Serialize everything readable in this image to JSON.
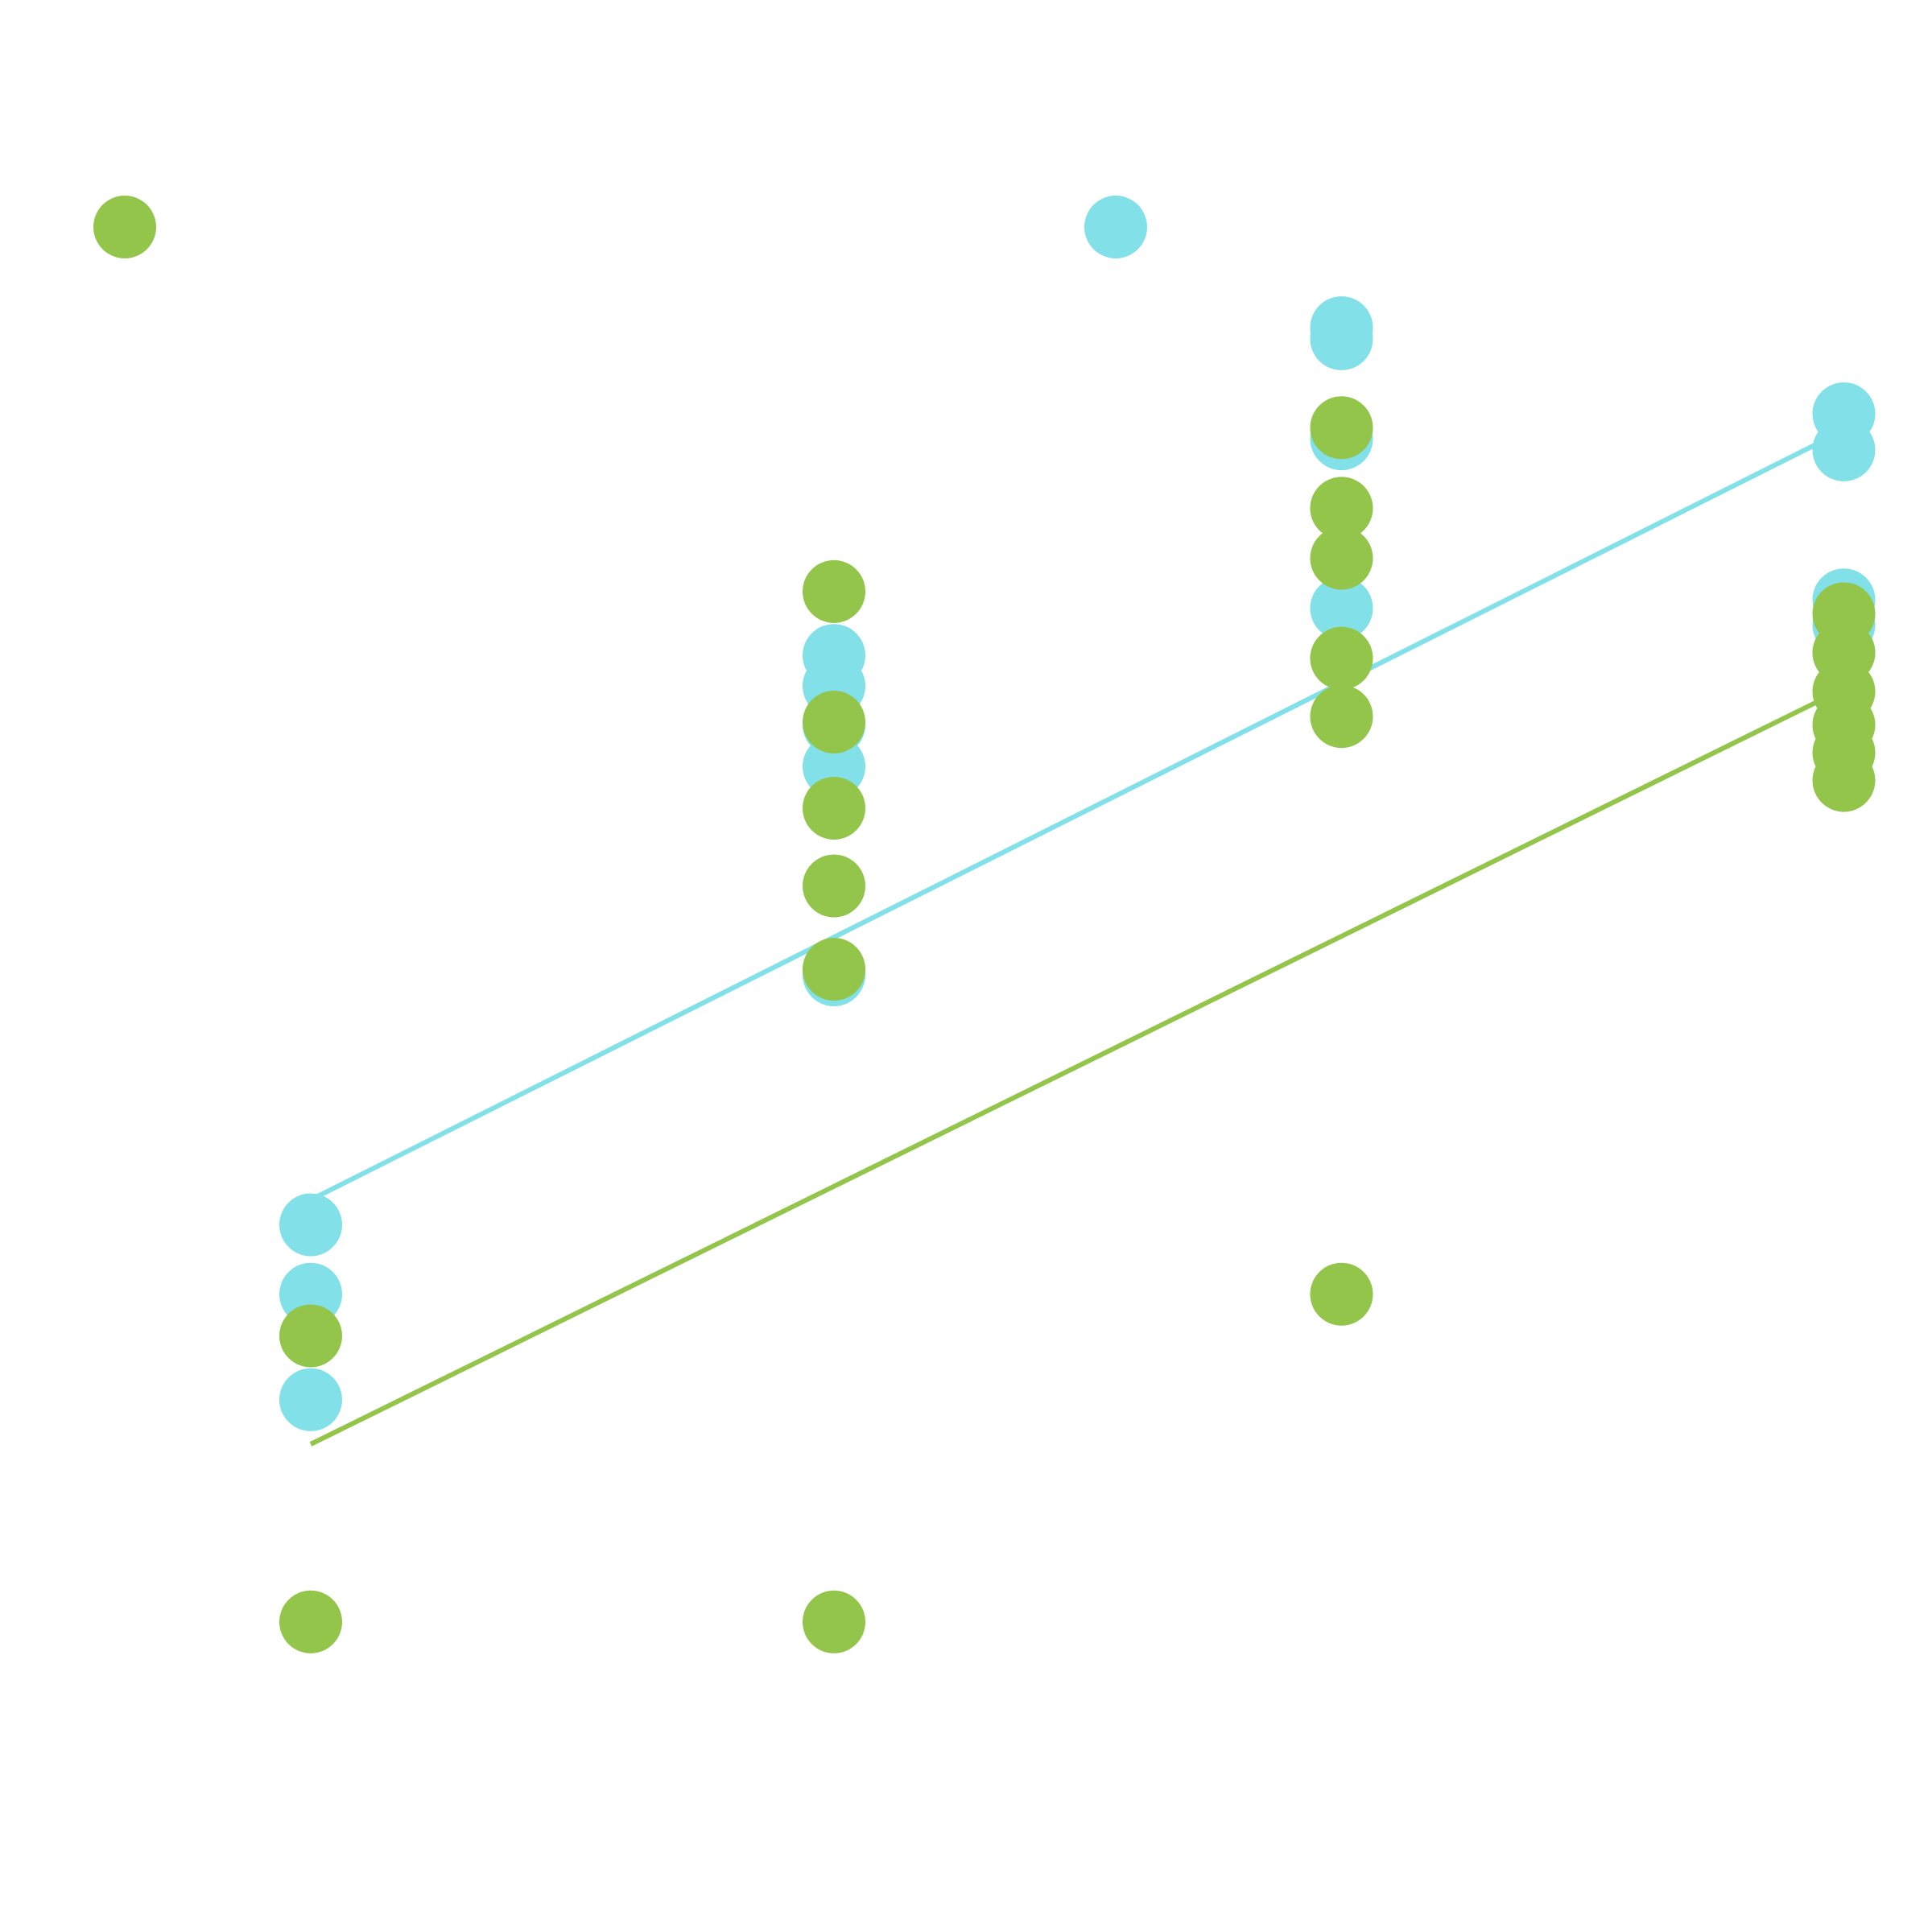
{
  "chart_data": {
    "type": "scatter",
    "title": "",
    "xlabel": "",
    "ylabel": "",
    "grid": false,
    "legend_location": "top",
    "xlim": [
      -0.4,
      3.0
    ],
    "ylim": [
      -3.4,
      0.05
    ],
    "series": [
      {
        "color": "#81E0E8",
        "legend_marker_position": "top-center",
        "points": [
          {
            "x": 0,
            "y": -2.205
          },
          {
            "x": 0,
            "y": -2.33
          },
          {
            "x": 0,
            "y": -2.52
          },
          {
            "x": 1,
            "y": -1.18
          },
          {
            "x": 1,
            "y": -1.235
          },
          {
            "x": 1,
            "y": -1.305
          },
          {
            "x": 1,
            "y": -1.38
          },
          {
            "x": 1,
            "y": -1.755
          },
          {
            "x": 1.97,
            "y": -0.59
          },
          {
            "x": 1.97,
            "y": -0.61
          },
          {
            "x": 1.97,
            "y": -0.79
          },
          {
            "x": 1.97,
            "y": -1.095
          },
          {
            "x": 2.93,
            "y": -0.745
          },
          {
            "x": 2.93,
            "y": -0.81
          },
          {
            "x": 2.93,
            "y": -1.08
          },
          {
            "x": 2.93,
            "y": -1.125
          },
          {
            "x": 2.93,
            "y": -1.175
          }
        ],
        "trend": {
          "x": [
            0,
            2.93
          ],
          "y": [
            -2.16,
            -0.775
          ]
        }
      },
      {
        "color": "#92C54A",
        "legend_marker_position": "top-left",
        "points": [
          {
            "x": 0,
            "y": -2.405
          },
          {
            "x": 0,
            "y": -2.92
          },
          {
            "x": 1,
            "y": -1.065
          },
          {
            "x": 1,
            "y": -1.3
          },
          {
            "x": 1,
            "y": -1.455
          },
          {
            "x": 1,
            "y": -1.595
          },
          {
            "x": 1,
            "y": -1.745
          },
          {
            "x": 1,
            "y": -2.92
          },
          {
            "x": 1.97,
            "y": -0.77
          },
          {
            "x": 1.97,
            "y": -0.915
          },
          {
            "x": 1.97,
            "y": -1.005
          },
          {
            "x": 1.97,
            "y": -1.185
          },
          {
            "x": 1.97,
            "y": -1.29
          },
          {
            "x": 1.97,
            "y": -2.33
          },
          {
            "x": 2.93,
            "y": -1.105
          },
          {
            "x": 2.93,
            "y": -1.175
          },
          {
            "x": 2.93,
            "y": -1.245
          },
          {
            "x": 2.93,
            "y": -1.305
          },
          {
            "x": 2.93,
            "y": -1.355
          },
          {
            "x": 2.93,
            "y": -1.405
          }
        ],
        "trend": {
          "x": [
            0,
            2.93
          ],
          "y": [
            -2.6,
            -1.24
          ]
        }
      }
    ]
  }
}
